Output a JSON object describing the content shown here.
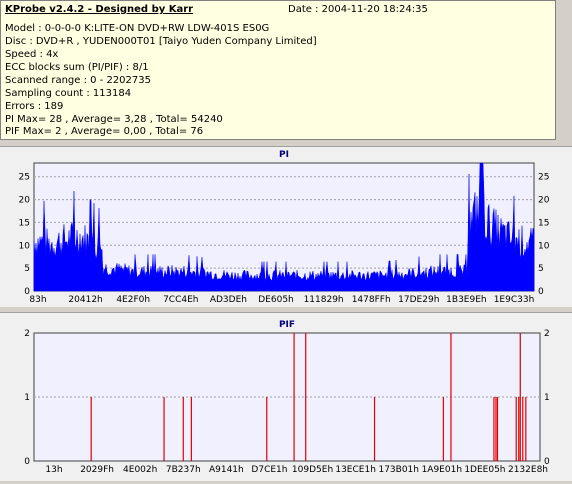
{
  "header": {
    "title": "KProbe v2.4.2 - Designed by Karr",
    "date": "Date : 2004-11-20 18:24:35"
  },
  "info_lines": [
    "Model : 0-0-0-0 K:LITE-ON DVD+RW LDW-401S  ES0G",
    "Disc : DVD+R , YUDEN000T01 [Taiyo Yuden Company Limited]",
    "Speed : 4x",
    "ECC blocks sum (PI/PIF) : 8/1",
    "Scanned range : 0 - 2202735",
    "Sampling count : 113184",
    "Errors : 189",
    "PI Max= 28 , Average= 3,28 , Total= 54240",
    "PIF Max= 2 , Average= 0,00 , Total= 76"
  ],
  "colors": {
    "pi": "#0000ff",
    "pif": "#e00000",
    "plot_bg": "#f0f0ff",
    "grid": "#a0a0a0"
  },
  "chart_data": [
    {
      "type": "bar",
      "title": "PI",
      "ylim": [
        0,
        28
      ],
      "yticks": [
        0,
        5,
        10,
        15,
        20,
        25
      ],
      "xtick_labels": [
        "83h",
        "20412h",
        "4E2F0h",
        "7CC4Eh",
        "AD3DEh",
        "DE605h",
        "111829h",
        "1478FFh",
        "17DE29h",
        "1B3E9Eh",
        "1E9C33h"
      ],
      "segments": [
        {
          "x": [
            0.0,
            0.03,
            0.06,
            0.09,
            0.12,
            0.135
          ],
          "y": [
            13,
            12,
            13,
            14,
            12,
            11
          ]
        },
        {
          "x": [
            0.14,
            0.2,
            0.3,
            0.4,
            0.5,
            0.6,
            0.7,
            0.8,
            0.86
          ],
          "y": [
            6,
            5,
            5,
            4,
            4,
            4,
            4,
            5,
            5
          ]
        },
        {
          "x": [
            0.87,
            0.89,
            0.91,
            0.93,
            0.96,
            1.0
          ],
          "y": [
            16,
            22,
            17,
            15,
            13,
            12
          ]
        }
      ],
      "grid": true
    },
    {
      "type": "bar",
      "title": "PIF",
      "ylim": [
        0,
        2
      ],
      "yticks": [
        0,
        1,
        2
      ],
      "xtick_labels": [
        "13h",
        "2029Fh",
        "4E002h",
        "7B237h",
        "A9141h",
        "D7CE1h",
        "109D5Eh",
        "13ECE1h",
        "173B01h",
        "1A9E01h",
        "1DEE05h",
        "2132E8h"
      ],
      "x": [
        0.113,
        0.257,
        0.295,
        0.311,
        0.46,
        0.514,
        0.537,
        0.673,
        0.809,
        0.824,
        0.909,
        0.913,
        0.916,
        0.953,
        0.958,
        0.961,
        0.966,
        0.972
      ],
      "values": [
        1,
        1,
        1,
        1,
        1,
        2,
        2,
        1,
        1,
        2,
        1,
        1,
        1,
        1,
        1,
        2,
        1,
        1
      ],
      "grid": true
    }
  ]
}
